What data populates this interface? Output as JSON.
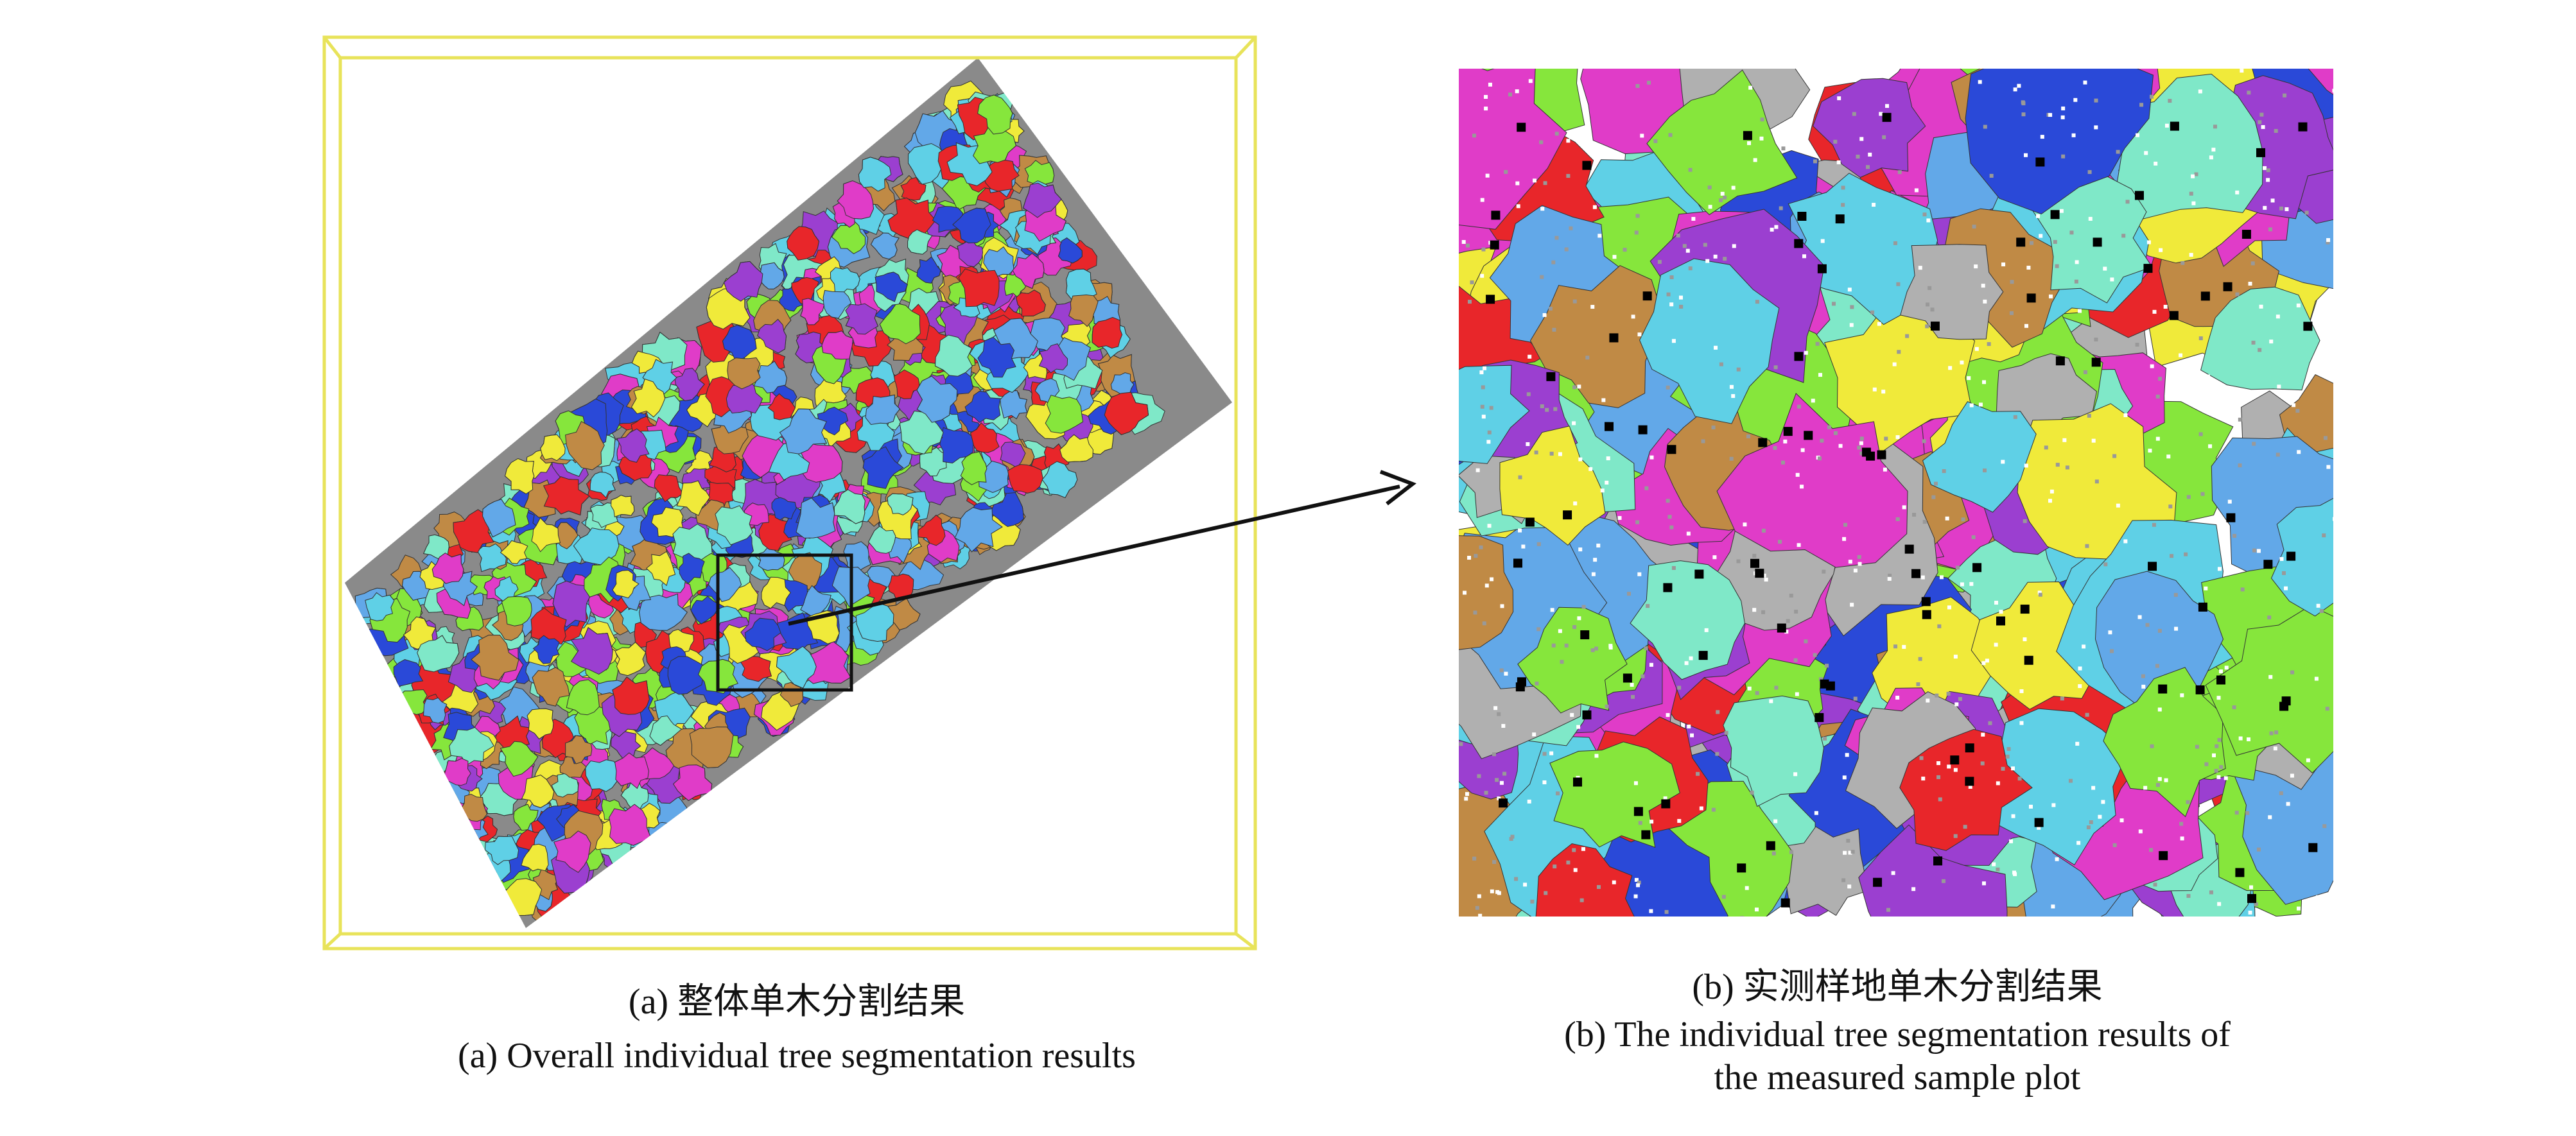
{
  "figure": {
    "panels": [
      {
        "caption_zh": "(a) 整体单木分割结果",
        "caption_en": "(a) Overall individual tree segmentation results"
      },
      {
        "caption_zh": "(b) 实测样地单木分割结果",
        "caption_en": [
          "(b) The individual tree segmentation results of",
          "the measured sample plot"
        ]
      }
    ]
  }
}
